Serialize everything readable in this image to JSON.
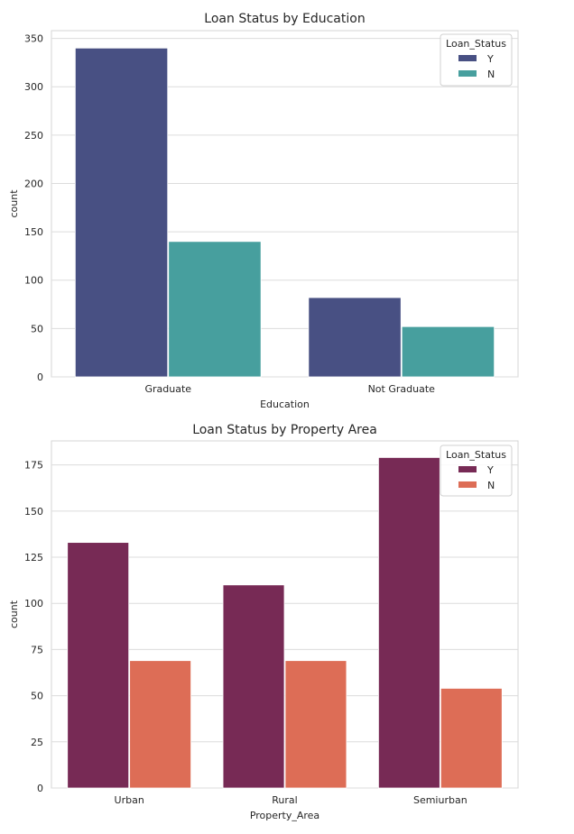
{
  "chart_data": [
    {
      "type": "bar",
      "title": "Loan Status by Education",
      "xlabel": "Education",
      "ylabel": "count",
      "categories": [
        "Graduate",
        "Not Graduate"
      ],
      "series": [
        {
          "name": "Y",
          "values": [
            340,
            82
          ]
        },
        {
          "name": "N",
          "values": [
            140,
            52
          ]
        }
      ],
      "ylim": [
        0,
        358
      ],
      "yticks": [
        0,
        50,
        100,
        150,
        200,
        250,
        300,
        350
      ],
      "legend": {
        "title": "Loan_Status",
        "position": "top-right"
      },
      "colors": [
        "#485083",
        "#479f9e"
      ],
      "grid": true
    },
    {
      "type": "bar",
      "title": "Loan Status by Property Area",
      "xlabel": "Property_Area",
      "ylabel": "count",
      "categories": [
        "Urban",
        "Rural",
        "Semiurban"
      ],
      "series": [
        {
          "name": "Y",
          "values": [
            133,
            110,
            179
          ]
        },
        {
          "name": "N",
          "values": [
            69,
            69,
            54
          ]
        }
      ],
      "ylim": [
        0,
        188
      ],
      "yticks": [
        0,
        25,
        50,
        75,
        100,
        125,
        150,
        175
      ],
      "legend": {
        "title": "Loan_Status",
        "position": "top-right"
      },
      "colors": [
        "#772a55",
        "#dd6d56"
      ],
      "grid": true
    }
  ]
}
